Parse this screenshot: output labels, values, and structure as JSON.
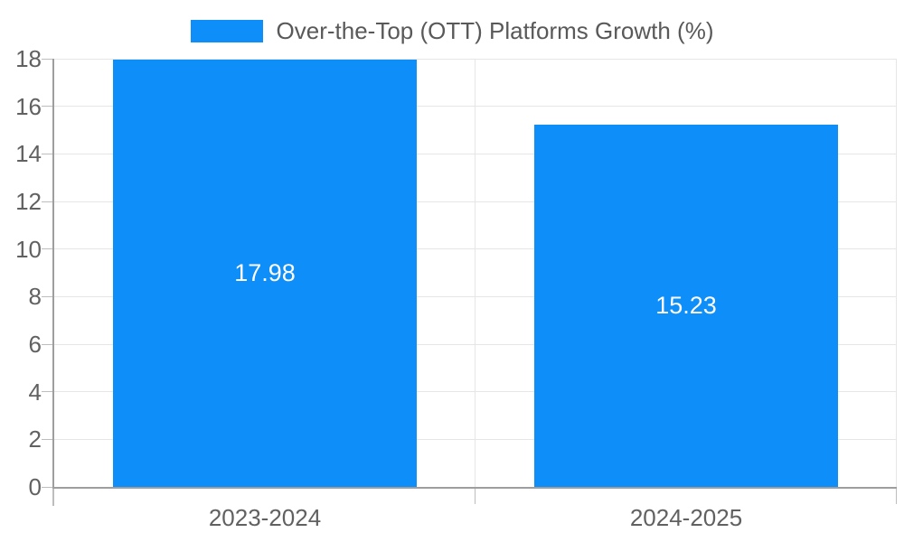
{
  "chart_data": {
    "type": "bar",
    "title": "",
    "series_label": "Over-the-Top (OTT) Platforms Growth (%)",
    "categories": [
      "2023-2024",
      "2024-2025"
    ],
    "values": [
      17.98,
      15.23
    ],
    "value_labels": [
      "17.98",
      "15.23"
    ],
    "ytick_labels": [
      "0",
      "2",
      "4",
      "6",
      "8",
      "10",
      "12",
      "14",
      "16",
      "18"
    ],
    "ylim": [
      0,
      18
    ],
    "ytick_step": 2,
    "grid": true,
    "legend_position": "top-center",
    "value_label_position": "center-of-bar"
  },
  "colors": {
    "bar": "#0d8ef8",
    "grid": "#e6e6e6",
    "axis": "#9e9e9e",
    "tick": "#bdbdbd",
    "tick_label": "#616161",
    "legend_text": "#595959",
    "value_label": "#ffffff",
    "background": "#ffffff"
  }
}
